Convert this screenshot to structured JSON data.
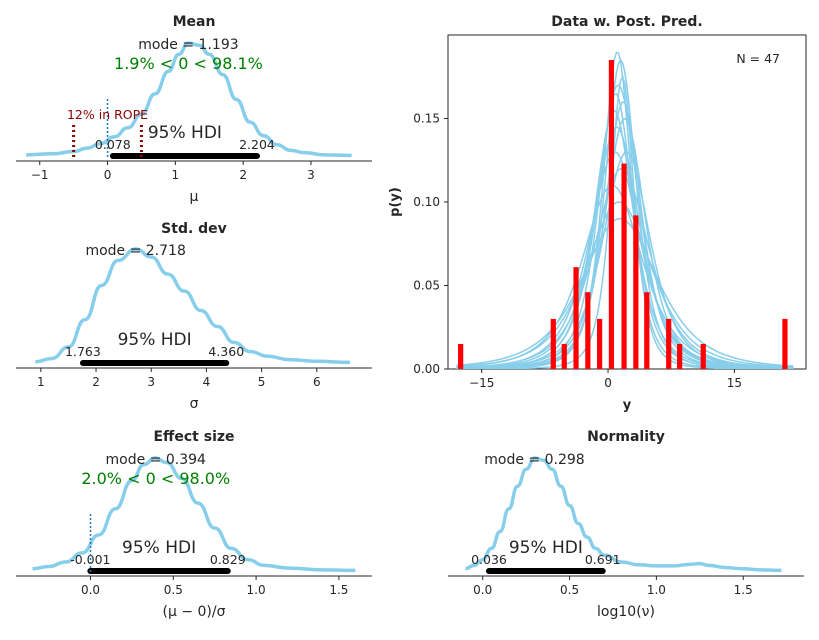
{
  "colors": {
    "curve": "#87ceeb",
    "hdi": "#000000",
    "bar": "#ff0000",
    "zero_line": "#1f77b4",
    "rope": "#8b0000",
    "pct": "#008000"
  },
  "chart_data": [
    {
      "id": "mean",
      "type": "area",
      "title": "Mean",
      "xlabel": "μ",
      "xlim": [
        -1.35,
        3.9
      ],
      "xticks": [
        -1,
        0,
        1,
        2,
        3
      ],
      "xtick_labels": [
        "−1",
        "0",
        "1",
        "2",
        "3"
      ],
      "mode_label": "mode = 1.193",
      "mode": 1.193,
      "comp_label": "1.9% < 0 < 98.1%",
      "rope_label": "12% in ROPE",
      "rope": [
        -0.5,
        0.5
      ],
      "hdi_label": "95% HDI",
      "hdi": [
        0.078,
        2.204
      ],
      "hdi_low_label": "0.078",
      "hdi_high_label": "2.204",
      "comp_value": 0,
      "curve_x": [
        -1.2,
        -0.8,
        -0.5,
        -0.3,
        -0.1,
        0.1,
        0.3,
        0.5,
        0.7,
        0.9,
        1.05,
        1.19,
        1.35,
        1.5,
        1.7,
        1.9,
        2.1,
        2.3,
        2.5,
        2.7,
        2.9,
        3.2,
        3.6
      ],
      "curve_y": [
        0.01,
        0.02,
        0.04,
        0.07,
        0.11,
        0.17,
        0.25,
        0.37,
        0.55,
        0.75,
        0.9,
        1.0,
        0.98,
        0.9,
        0.72,
        0.5,
        0.3,
        0.18,
        0.1,
        0.05,
        0.03,
        0.01,
        0.005
      ]
    },
    {
      "id": "sd",
      "type": "area",
      "title": "Std. dev",
      "xlabel": "σ",
      "xlim": [
        0.55,
        7.0
      ],
      "xticks": [
        1,
        2,
        3,
        4,
        5,
        6
      ],
      "xtick_labels": [
        "1",
        "2",
        "3",
        "4",
        "5",
        "6"
      ],
      "mode_label": "mode = 2.718",
      "mode": 2.718,
      "hdi_label": "95% HDI",
      "hdi": [
        1.763,
        4.36
      ],
      "hdi_low_label": "1.763",
      "hdi_high_label": "4.360",
      "curve_x": [
        0.9,
        1.2,
        1.5,
        1.8,
        2.1,
        2.4,
        2.72,
        3.0,
        3.3,
        3.6,
        3.9,
        4.2,
        4.5,
        4.8,
        5.1,
        5.5,
        6.0,
        6.6
      ],
      "curve_y": [
        0.01,
        0.04,
        0.14,
        0.38,
        0.68,
        0.9,
        1.0,
        0.93,
        0.78,
        0.63,
        0.46,
        0.32,
        0.18,
        0.1,
        0.06,
        0.03,
        0.015,
        0.005
      ]
    },
    {
      "id": "effect",
      "type": "area",
      "title": "Effect size",
      "xlabel": "(μ − 0)/σ",
      "xlim": [
        -0.45,
        1.7
      ],
      "xticks": [
        0,
        0.5,
        1,
        1.5
      ],
      "xtick_labels": [
        "0.0",
        "0.5",
        "1.0",
        "1.5"
      ],
      "mode_label": "mode = 0.394",
      "mode": 0.394,
      "comp_label": "2.0% < 0 < 98.0%",
      "comp_value": 0,
      "hdi_label": "95% HDI",
      "hdi": [
        -0.001,
        0.829
      ],
      "hdi_low_label": "-0.001",
      "hdi_high_label": "0.829",
      "curve_x": [
        -0.35,
        -0.25,
        -0.15,
        -0.05,
        0.05,
        0.15,
        0.25,
        0.32,
        0.39,
        0.46,
        0.55,
        0.65,
        0.75,
        0.85,
        0.95,
        1.05,
        1.2,
        1.4,
        1.6
      ],
      "curve_y": [
        0.02,
        0.04,
        0.08,
        0.16,
        0.32,
        0.55,
        0.8,
        0.94,
        1.0,
        0.96,
        0.82,
        0.6,
        0.38,
        0.2,
        0.1,
        0.05,
        0.025,
        0.01,
        0.005
      ]
    },
    {
      "id": "norm",
      "type": "area",
      "title": "Normality",
      "xlabel": "log10(ν)",
      "xlim": [
        -0.2,
        1.85
      ],
      "xticks": [
        0,
        0.5,
        1,
        1.5
      ],
      "xtick_labels": [
        "0.0",
        "0.5",
        "1.0",
        "1.5"
      ],
      "mode_label": "mode = 0.298",
      "mode": 0.298,
      "hdi_label": "95% HDI",
      "hdi": [
        0.036,
        0.691
      ],
      "hdi_low_label": "0.036",
      "hdi_high_label": "0.691",
      "curve_x": [
        -0.1,
        -0.05,
        0.0,
        0.05,
        0.1,
        0.15,
        0.2,
        0.25,
        0.3,
        0.35,
        0.4,
        0.45,
        0.5,
        0.55,
        0.6,
        0.65,
        0.7,
        0.8,
        0.9,
        1.0,
        1.1,
        1.2,
        1.25,
        1.3,
        1.4,
        1.5,
        1.6,
        1.72
      ],
      "curve_y": [
        0.02,
        0.05,
        0.1,
        0.2,
        0.35,
        0.55,
        0.75,
        0.9,
        1.0,
        0.98,
        0.9,
        0.75,
        0.58,
        0.42,
        0.3,
        0.2,
        0.14,
        0.08,
        0.055,
        0.045,
        0.045,
        0.06,
        0.065,
        0.05,
        0.03,
        0.02,
        0.01,
        0.005
      ]
    },
    {
      "id": "ppc",
      "type": "bar",
      "title": "Data w. Post. Pred.",
      "xlabel": "y",
      "ylabel": "p(y)",
      "xlim": [
        -19,
        23.5
      ],
      "ylim": [
        0,
        0.2
      ],
      "xticks": [
        -15,
        0,
        15
      ],
      "xtick_labels": [
        "−15",
        "0",
        "15"
      ],
      "yticks": [
        0,
        0.05,
        0.1,
        0.15
      ],
      "ytick_labels": [
        "0.00",
        "0.05",
        "0.10",
        "0.15"
      ],
      "n_label": "N = 47",
      "bars_x": [
        -17.5,
        -6.5,
        -5.2,
        -3.8,
        -2.4,
        -1.0,
        0.4,
        1.9,
        3.3,
        4.6,
        7.2,
        8.5,
        11.3,
        21.0
      ],
      "bars_y": [
        0.015,
        0.03,
        0.015,
        0.061,
        0.046,
        0.03,
        0.185,
        0.123,
        0.092,
        0.046,
        0.03,
        0.015,
        0.015,
        0.03
      ],
      "pred_curves": [
        {
          "center": 1.2,
          "scale": 2.6,
          "peak": 0.17
        },
        {
          "center": 1.5,
          "scale": 2.0,
          "peak": 0.185
        },
        {
          "center": 0.8,
          "scale": 3.2,
          "peak": 0.13
        },
        {
          "center": 1.8,
          "scale": 2.3,
          "peak": 0.16
        },
        {
          "center": 0.5,
          "scale": 3.8,
          "peak": 0.11
        },
        {
          "center": 1.0,
          "scale": 2.9,
          "peak": 0.145
        },
        {
          "center": 2.0,
          "scale": 2.6,
          "peak": 0.15
        },
        {
          "center": 1.3,
          "scale": 4.2,
          "peak": 0.1
        },
        {
          "center": 0.9,
          "scale": 2.2,
          "peak": 0.165
        },
        {
          "center": 1.6,
          "scale": 3.5,
          "peak": 0.12
        },
        {
          "center": 1.1,
          "scale": 1.8,
          "peak": 0.19
        },
        {
          "center": 2.2,
          "scale": 3.0,
          "peak": 0.13
        },
        {
          "center": 0.7,
          "scale": 2.5,
          "peak": 0.155
        },
        {
          "center": 1.4,
          "scale": 4.8,
          "peak": 0.09
        },
        {
          "center": 1.7,
          "scale": 1.5,
          "peak": 0.175
        }
      ]
    }
  ]
}
